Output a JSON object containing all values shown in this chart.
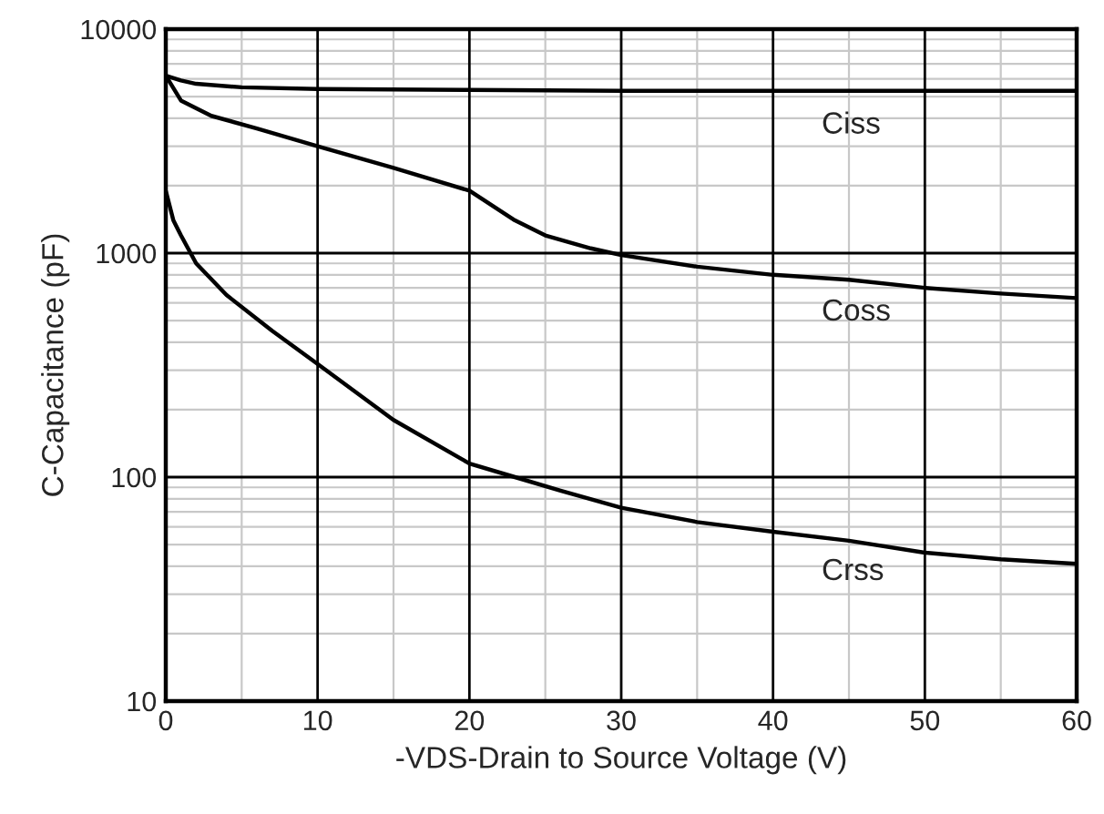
{
  "chart_data": {
    "type": "line",
    "xlabel": "-VDS-Drain to Source Voltage (V)",
    "ylabel": "C-Capacitance (pF)",
    "log": "y",
    "grid": true,
    "xlim": [
      0,
      60
    ],
    "xticks": [
      0,
      10,
      20,
      30,
      40,
      50,
      60
    ],
    "ylim": [
      10,
      10000
    ],
    "yticks": [
      10,
      100,
      1000,
      10000
    ],
    "series": [
      {
        "name": "Ciss",
        "color": "#000000",
        "x": [
          0,
          1,
          2,
          5,
          10,
          20,
          30,
          40,
          50,
          60
        ],
        "values": [
          6200,
          5900,
          5700,
          5500,
          5400,
          5350,
          5300,
          5300,
          5300,
          5300
        ]
      },
      {
        "name": "Coss",
        "color": "#000000",
        "x": [
          0,
          1,
          3,
          6,
          10,
          15,
          20,
          23,
          25,
          28,
          30,
          35,
          40,
          45,
          50,
          55,
          60
        ],
        "values": [
          6200,
          4800,
          4100,
          3600,
          3000,
          2400,
          1900,
          1400,
          1200,
          1050,
          980,
          870,
          800,
          760,
          700,
          660,
          630
        ]
      },
      {
        "name": "Crss",
        "color": "#000000",
        "x": [
          0,
          0.5,
          1,
          2,
          4,
          7,
          10,
          15,
          20,
          23,
          26,
          30,
          35,
          40,
          45,
          50,
          55,
          60
        ],
        "values": [
          1900,
          1400,
          1200,
          900,
          650,
          450,
          320,
          180,
          115,
          100,
          87,
          73,
          63,
          57,
          52,
          46,
          43,
          41
        ]
      }
    ]
  }
}
